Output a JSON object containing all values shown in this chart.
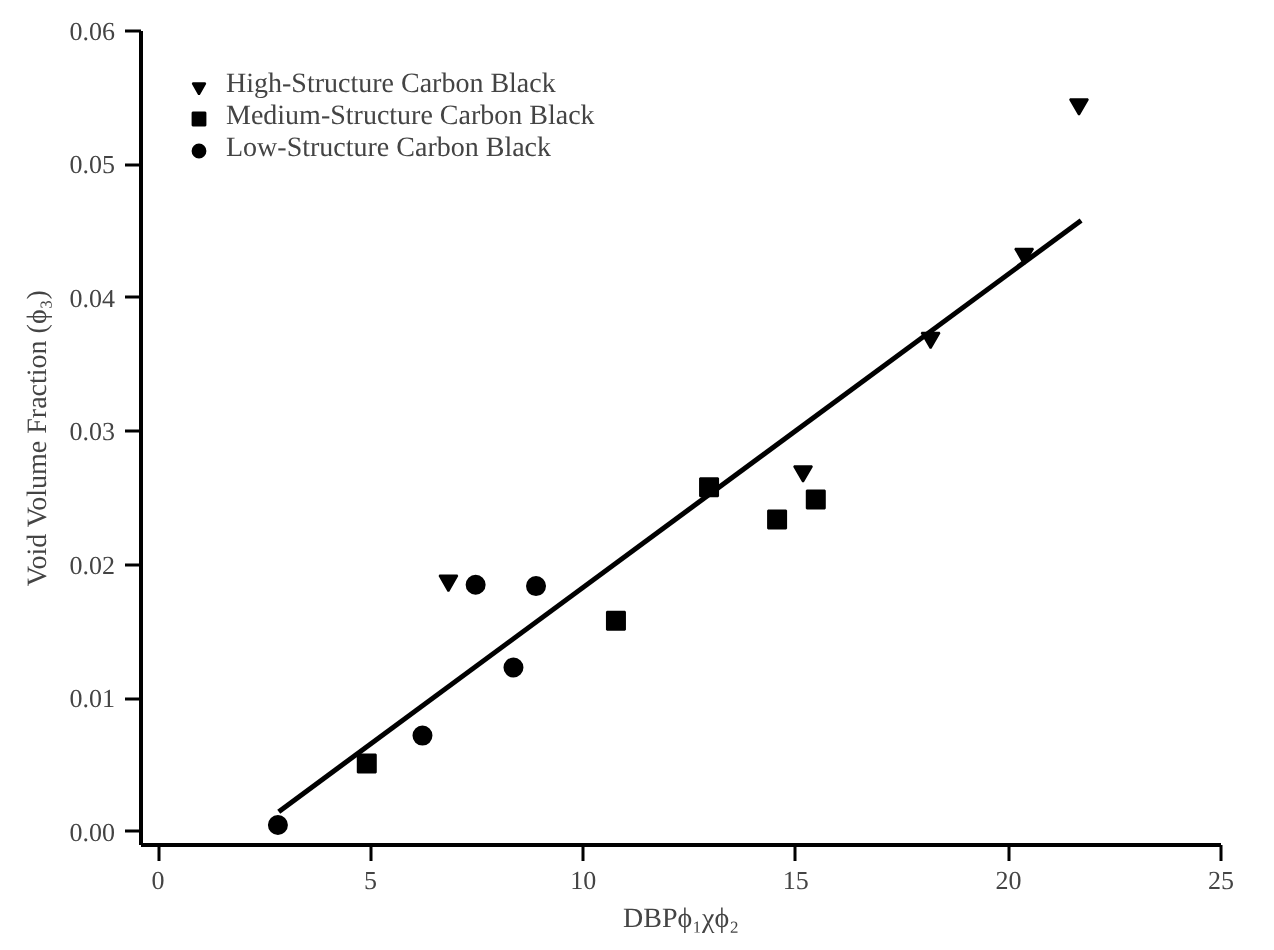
{
  "chart_data": {
    "type": "scatter",
    "xlabel": "DBPϕ₁χϕ₂",
    "ylabel": "Void Volume Fraction (ϕ₃)",
    "xlim": [
      -0.4,
      25
    ],
    "xticks": [
      0,
      5,
      10,
      15,
      20,
      25
    ],
    "ylim": [
      -0.001,
      0.06
    ],
    "yticks": [
      {
        "value": 0,
        "label": "0.00"
      },
      {
        "value": 0.01,
        "label": "0.01"
      },
      {
        "value": 0.02,
        "label": "0.02"
      },
      {
        "value": 0.03,
        "label": "0.03"
      },
      {
        "value": 0.04,
        "label": "0.04"
      },
      {
        "value": 0.05,
        "label": "0.05"
      },
      {
        "value": 0.06,
        "label": "0.06"
      }
    ],
    "grid": false,
    "legend": "top left",
    "series": [
      {
        "name": "High-Structure Carbon Black",
        "color": "#000000",
        "marker": "triangle",
        "x": [
          21.66,
          20.37,
          18.17,
          15.17,
          6.83
        ],
        "values": [
          0.0545,
          0.0433,
          0.037,
          0.027,
          0.0188
        ]
      },
      {
        "name": "Medium-Structure Carbon Black",
        "color": "#000000",
        "marker": "square",
        "x": [
          12.96,
          14.56,
          15.47,
          10.77,
          4.91
        ],
        "values": [
          0.0258,
          0.0234,
          0.0249,
          0.0158,
          0.0051
        ]
      },
      {
        "name": "Low-Structure Carbon Black",
        "color": "#000000",
        "marker": "circle",
        "x": [
          7.47,
          8.89,
          2.82,
          6.22,
          8.36
        ],
        "values": [
          0.0185,
          0.0184,
          0.0005,
          0.0072,
          0.0123
        ]
      },
      {
        "type": "line",
        "color": "#000000",
        "marker": "none",
        "line_style": "solid",
        "x": [
          2.84,
          21.71
        ],
        "values": [
          0.0015,
          0.0458
        ]
      }
    ]
  }
}
